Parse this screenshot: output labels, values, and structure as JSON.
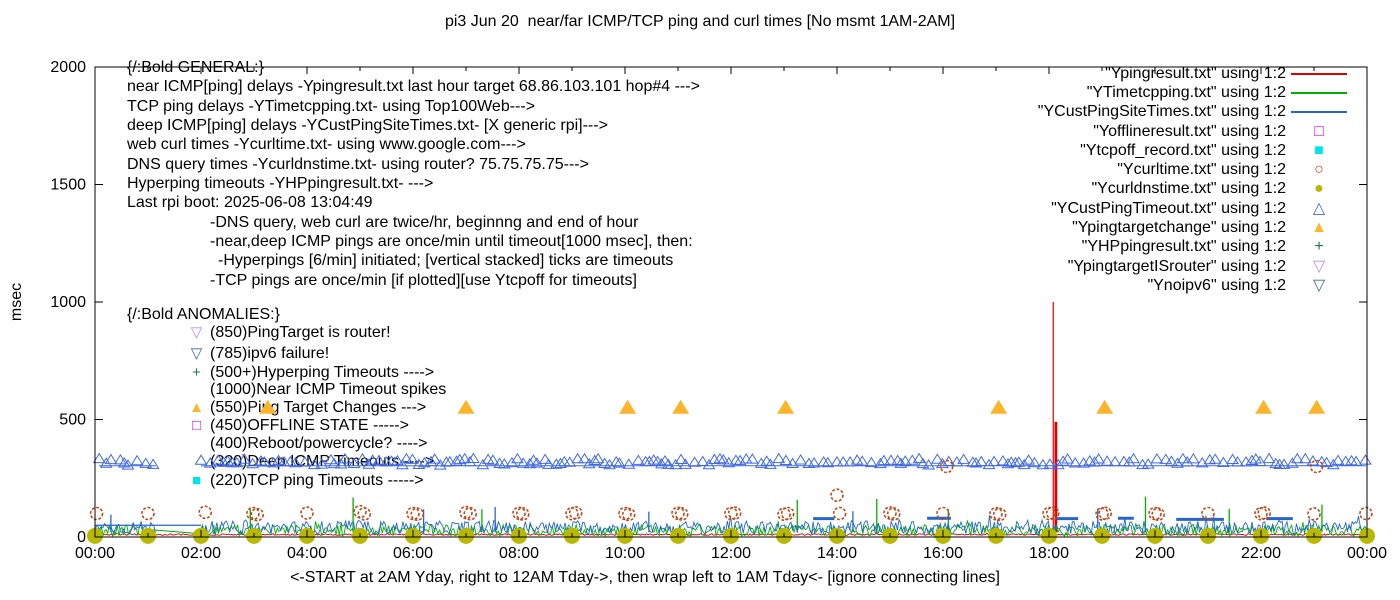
{
  "title": "pi3 Jun 20  near/far ICMP/TCP ping and curl times [No msmt 1AM-2AM]",
  "colors": {
    "red": "#dd0000",
    "green": "#00b000",
    "blue": "#2567c9",
    "triangle_blue": "#4169e1",
    "magenta": "#ff00ff",
    "cyan": "#00e5e5",
    "curl": "#c04818",
    "olive": "#b8b800",
    "orange": "#fcb42a",
    "plusgreen": "#1e7a4a",
    "violet": "#bd8cf5",
    "steel": "#3d6e8e",
    "axis": "#000000"
  },
  "axes": {
    "ylabel": "msec",
    "xlabel": "<-START at 2AM Yday, right to 12AM Tday->, then wrap left to 1AM Tday<- [ignore connecting lines]",
    "y_ticks": [
      0,
      500,
      1000,
      1500,
      2000
    ],
    "x_tick_labels": [
      "00:00",
      "02:00",
      "04:00",
      "06:00",
      "08:00",
      "10:00",
      "12:00",
      "14:00",
      "16:00",
      "18:00",
      "20:00",
      "22:00",
      "00:00"
    ],
    "y_range_msec": [
      0,
      2000
    ],
    "x_range_hours": [
      0,
      24
    ]
  },
  "general": {
    "lines": [
      "{/:Bold GENERAL:}",
      "near ICMP[ping] delays -Ypingresult.txt last hour target 68.86.103.101 hop#4 --->",
      "TCP ping delays -YTimetcpping.txt- using Top100Web--->",
      "deep ICMP[ping] delays -YCustPingSiteTimes.txt- [X generic rpi]--->",
      "web curl times -Ycurltime.txt- using www.google.com--->",
      "DNS query times -Ycurldnstime.txt- using router? 75.75.75.75--->",
      "Hyperping timeouts -YHPpingresult.txt- --->",
      "Last rpi boot: 2025-06-08 13:04:49",
      "-DNS query, web curl are twice/hr, beginnng and end of hour",
      "-near,deep ICMP pings are once/min until timeout[1000 msec], then:",
      "-Hyperpings [6/min] initiated; [vertical stacked] ticks are timeouts",
      "-TCP pings are once/min [if plotted][use Ytcpoff for timeouts]"
    ]
  },
  "anomalies": {
    "heading": "{/:Bold ANOMALIES:}",
    "items": [
      {
        "glyph": "▽",
        "color": "violet",
        "text": "(850)PingTarget is router!"
      },
      {
        "glyph": "▽",
        "color": "steel",
        "text": "(785)ipv6 failure!"
      },
      {
        "glyph": "+",
        "color": "plusgreen",
        "text": "(500+)Hyperping Timeouts ---->"
      },
      {
        "glyph": "",
        "color": "axis",
        "text": "(1000)Near ICMP Timeout spikes"
      },
      {
        "glyph": "▲",
        "color": "orange",
        "text": "(550)Ping Target Changes --->"
      },
      {
        "glyph": "□",
        "color": "magenta",
        "text": "(450)OFFLINE STATE ----->"
      },
      {
        "glyph": "",
        "color": "axis",
        "text": "(400)Reboot/powercycle? ---->"
      },
      {
        "glyph": "",
        "color": "axis",
        "text": "(320)Deep ICMP Timeouts ---->"
      },
      {
        "glyph": "■",
        "color": "cyan",
        "text": "(220)TCP ping Timeouts ----->"
      }
    ]
  },
  "legend": {
    "items": [
      {
        "label": "\"Ypingresult.txt\" using 1:2",
        "marker": "line",
        "color": "red",
        "glyph": ""
      },
      {
        "label": "\"YTimetcpping.txt\" using 1:2",
        "marker": "line",
        "color": "green",
        "glyph": ""
      },
      {
        "label": "\"YCustPingSiteTimes.txt\" using 1:2",
        "marker": "line",
        "color": "blue",
        "glyph": ""
      },
      {
        "label": "\"Yofflineresult.txt\" using 1:2",
        "marker": "square-open",
        "color": "magenta",
        "glyph": "□"
      },
      {
        "label": "\"Ytcpoff_record.txt\" using 1:2",
        "marker": "square-filled",
        "color": "cyan",
        "glyph": "■"
      },
      {
        "label": "\"Ycurltime.txt\" using 1:2",
        "marker": "circle-open",
        "color": "curl",
        "glyph": "○"
      },
      {
        "label": "\"Ycurldnstime.txt\" using 1:2",
        "marker": "circle-filled",
        "color": "olive",
        "glyph": "●"
      },
      {
        "label": "\"YCustPingTimeout.txt\" using 1:2",
        "marker": "triangle-open",
        "color": "triangle_blue",
        "glyph": "△"
      },
      {
        "label": "\"Ypingtargetchange\" using 1:2",
        "marker": "triangle-filled",
        "color": "orange",
        "glyph": "▲"
      },
      {
        "label": "\"YHPpingresult.txt\" using 1:2",
        "marker": "plus",
        "color": "plusgreen",
        "glyph": "+"
      },
      {
        "label": "\"YpingtargetISrouter\" using 1:2",
        "marker": "triangle-down-open",
        "color": "violet",
        "glyph": "▽"
      },
      {
        "label": "\"Ynoipv6\" using 1:2",
        "marker": "triangle-down-open",
        "color": "steel",
        "glyph": "▽"
      }
    ]
  },
  "chart_data": {
    "type": "line",
    "x_unit": "hours",
    "x_range": [
      0,
      24
    ],
    "y_range_msec": [
      0,
      2000
    ],
    "no_measurement_window_hours": [
      1.0,
      2.0
    ],
    "series": [
      {
        "name": "Ypingresult.txt",
        "style": "noise-line",
        "color": "red",
        "noise_band_msec": [
          7,
          14
        ],
        "ranges": [
          [
            0,
            24
          ]
        ],
        "spikes": [
          [
            18.08,
            1000,
            1.2
          ],
          [
            18.13,
            490,
            2.8
          ]
        ]
      },
      {
        "name": "YTimetcpping.txt",
        "style": "noise-line",
        "color": "green",
        "noise_band_msec": [
          4,
          52
        ],
        "ranges": [
          [
            0,
            1.0
          ],
          [
            2,
            24
          ]
        ],
        "gap_segment": [
          [
            1.0,
            32
          ],
          [
            2.0,
            14
          ]
        ],
        "spikes": [
          [
            2.93,
            120,
            1.3
          ],
          [
            4.87,
            168,
            1.3
          ],
          [
            7.3,
            118,
            1.3
          ],
          [
            13.25,
            158,
            1.3
          ],
          [
            14.75,
            162,
            1.3
          ],
          [
            16.1,
            118,
            1.3
          ],
          [
            19.82,
            172,
            1.3
          ],
          [
            21.4,
            120,
            1.3
          ],
          [
            23.15,
            138,
            1.3
          ]
        ]
      },
      {
        "name": "YCustPingSiteTimes.txt",
        "style": "noise-line",
        "color": "blue",
        "noise_band_msec": [
          12,
          68
        ],
        "ranges": [
          [
            0,
            1.17
          ],
          [
            2,
            24
          ]
        ],
        "flat_segments": [
          [
            0.0,
            2.0,
            50,
            1.2
          ],
          [
            13.55,
            13.95,
            78,
            3
          ],
          [
            15.7,
            16.15,
            80,
            3
          ],
          [
            18.15,
            18.55,
            78,
            3
          ],
          [
            19.3,
            19.6,
            80,
            3
          ],
          [
            20.4,
            21.3,
            75,
            3
          ],
          [
            22.1,
            22.6,
            78,
            3
          ]
        ],
        "spikes": [
          [
            0.3,
            95,
            1.3
          ],
          [
            6.2,
            118,
            1.3
          ],
          [
            7.55,
            128,
            1.3
          ],
          [
            10.45,
            108,
            1.3
          ],
          [
            14.3,
            110,
            1.3
          ],
          [
            18.92,
            120,
            1.3
          ]
        ]
      },
      {
        "name": "YCustPingTimeout.txt",
        "style": "open-triangle-band",
        "color": "triangle_blue",
        "level_msec": 320,
        "connect_line_msec": 303,
        "ranges": [
          [
            0.08,
            1.15
          ],
          [
            2.0,
            23.98
          ]
        ]
      },
      {
        "name": "Ycurltime.txt",
        "style": "open-circle",
        "color": "curl",
        "points": [
          [
            0.03,
            100
          ],
          [
            1.0,
            100
          ],
          [
            2.08,
            105
          ],
          [
            2.98,
            100
          ],
          [
            3.06,
            95
          ],
          [
            4.0,
            102
          ],
          [
            5.0,
            108
          ],
          [
            5.08,
            98
          ],
          [
            6.0,
            100
          ],
          [
            6.08,
            97
          ],
          [
            7.0,
            104
          ],
          [
            7.08,
            99
          ],
          [
            8.0,
            101
          ],
          [
            8.07,
            98
          ],
          [
            9.0,
            99
          ],
          [
            9.07,
            103
          ],
          [
            10.0,
            100
          ],
          [
            10.07,
            96
          ],
          [
            11.0,
            101
          ],
          [
            11.07,
            98
          ],
          [
            12.0,
            100
          ],
          [
            12.07,
            102
          ],
          [
            13.0,
            97
          ],
          [
            13.07,
            100
          ],
          [
            14.0,
            178
          ],
          [
            14.05,
            100
          ],
          [
            15.0,
            102
          ],
          [
            15.07,
            98
          ],
          [
            16.0,
            100
          ],
          [
            16.07,
            300
          ],
          [
            17.0,
            99
          ],
          [
            17.07,
            96
          ],
          [
            18.0,
            100
          ],
          [
            18.07,
            102
          ],
          [
            19.0,
            98
          ],
          [
            19.06,
            101
          ],
          [
            20.0,
            100
          ],
          [
            20.06,
            97
          ],
          [
            21.0,
            100
          ],
          [
            22.0,
            99
          ],
          [
            22.06,
            102
          ],
          [
            23.0,
            98
          ],
          [
            23.05,
            300
          ],
          [
            23.98,
            100
          ]
        ]
      },
      {
        "name": "Ycurldnstime.txt",
        "style": "filled-circle",
        "color": "olive",
        "t_hours": [
          0,
          1,
          2,
          3,
          4,
          5,
          6,
          7,
          8,
          9,
          10,
          11,
          12,
          13,
          14,
          15,
          16,
          17,
          18,
          19,
          20,
          21,
          22,
          23,
          24
        ],
        "value_msec": 5
      },
      {
        "name": "Ypingtargetchange",
        "style": "filled-triangle",
        "color": "orange",
        "level_msec": 550,
        "t_hours": [
          3.26,
          7.0,
          10.05,
          11.05,
          13.03,
          17.05,
          19.05,
          22.05,
          23.05
        ]
      }
    ]
  }
}
